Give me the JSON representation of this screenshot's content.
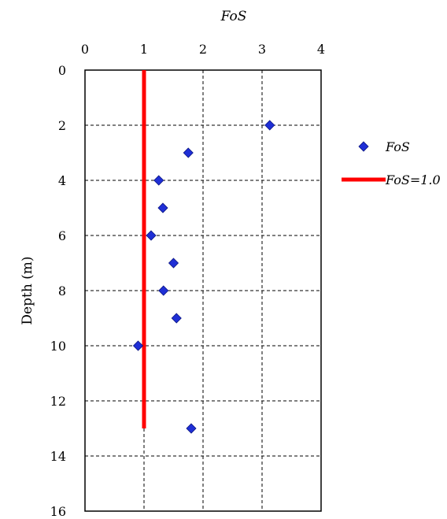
{
  "chart_data": {
    "type": "scatter",
    "title": "FoS",
    "xlabel": "FoS",
    "ylabel": "Depth (m)",
    "x_axis_position": "top",
    "y_inverted": true,
    "xlim": [
      0,
      4
    ],
    "ylim": [
      0,
      16
    ],
    "x_ticks": [
      "0",
      "1",
      "2",
      "3",
      "4"
    ],
    "y_ticks": [
      "0",
      "2",
      "4",
      "6",
      "8",
      "10",
      "12",
      "14",
      "16"
    ],
    "grid": true,
    "legend_position": "right",
    "series": [
      {
        "name": "FoS",
        "kind": "scatter",
        "marker": "diamond",
        "color": "#1f2fd6",
        "points": [
          {
            "x": 3.13,
            "y": 2
          },
          {
            "x": 1.75,
            "y": 3
          },
          {
            "x": 1.25,
            "y": 4
          },
          {
            "x": 1.32,
            "y": 5
          },
          {
            "x": 1.12,
            "y": 6
          },
          {
            "x": 1.5,
            "y": 7
          },
          {
            "x": 1.33,
            "y": 8
          },
          {
            "x": 1.55,
            "y": 9
          },
          {
            "x": 0.9,
            "y": 10
          },
          {
            "x": 1.8,
            "y": 13
          }
        ]
      },
      {
        "name": "FoS=1.0",
        "kind": "line",
        "color": "#ff0000",
        "points": [
          {
            "x": 1,
            "y": 0
          },
          {
            "x": 1,
            "y": 13
          }
        ]
      }
    ]
  }
}
